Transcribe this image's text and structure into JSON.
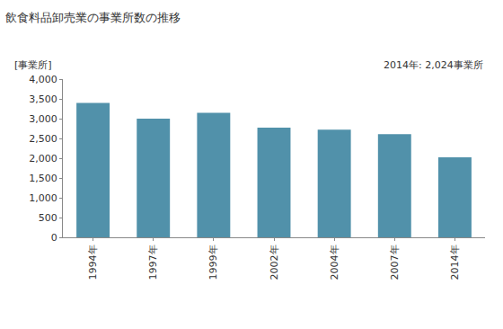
{
  "chart_data": {
    "type": "bar",
    "title": "飲食料品卸売業の事業所数の推移",
    "ylabel": "[事業所]",
    "annotations": [
      "2014年: 2,024事業所"
    ],
    "categories": [
      "1994年",
      "1997年",
      "1999年",
      "2002年",
      "2004年",
      "2007年",
      "2014年"
    ],
    "values": [
      3400,
      3000,
      3150,
      2770,
      2720,
      2610,
      2024
    ],
    "color": "#5191aa",
    "ylim": [
      0,
      4000
    ],
    "yticks": [
      0,
      500,
      {
        "value": 1000,
        "label": "1,000"
      },
      {
        "value": 1500,
        "label": "1,500"
      },
      {
        "value": 2000,
        "label": "2,000"
      },
      {
        "value": 2500,
        "label": "2,500"
      },
      {
        "value": 3000,
        "label": "3,000"
      },
      {
        "value": 3500,
        "label": "3,500"
      },
      {
        "value": 4000,
        "label": "4,000"
      }
    ],
    "grid": false
  }
}
